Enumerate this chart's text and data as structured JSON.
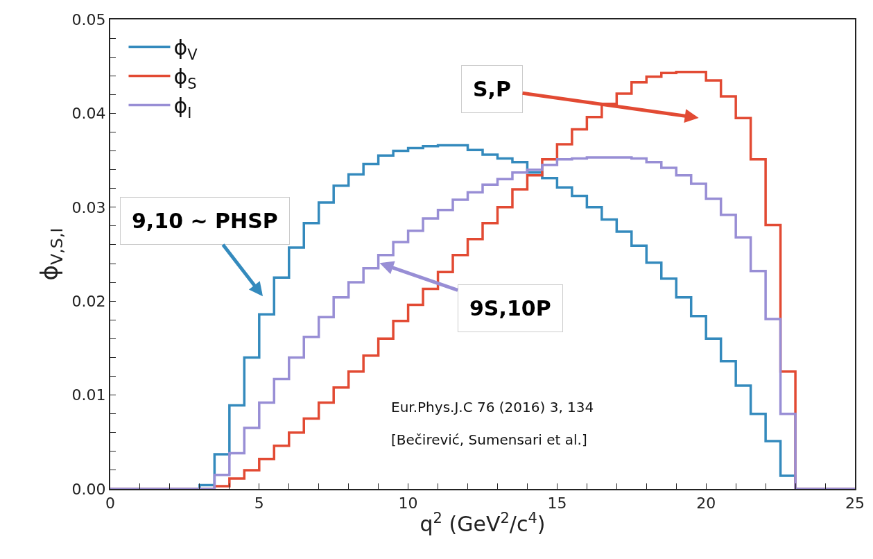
{
  "chart_data": {
    "type": "histogram",
    "xlabel": "q$^{2}$ (GeV$^{2}$/c$^{4}$)",
    "ylabel": "ϕ$_{V,S,I}$",
    "bins": [
      0,
      0.5,
      1,
      1.5,
      2,
      2.5,
      3,
      3.5,
      4,
      4.5,
      5,
      5.5,
      6,
      6.5,
      7,
      7.5,
      8,
      8.5,
      9,
      9.5,
      10,
      10.5,
      11,
      11.5,
      12,
      12.5,
      13,
      13.5,
      14,
      14.5,
      15,
      15.5,
      16,
      16.5,
      17,
      17.5,
      18,
      18.5,
      19,
      19.5,
      20,
      20.5,
      21,
      21.5,
      22,
      22.5,
      23,
      23.5,
      24,
      24.5,
      25
    ],
    "series": [
      {
        "name": "ϕ$_{V}$",
        "color": "#348abd",
        "values": [
          0,
          0,
          0,
          0,
          0,
          0,
          0.0004,
          0.0037,
          0.0089,
          0.014,
          0.0186,
          0.0225,
          0.0257,
          0.0283,
          0.0305,
          0.0323,
          0.0335,
          0.0346,
          0.0355,
          0.036,
          0.0363,
          0.0365,
          0.0366,
          0.0366,
          0.0361,
          0.0356,
          0.0352,
          0.0348,
          0.0337,
          0.0331,
          0.0321,
          0.0312,
          0.03,
          0.0287,
          0.0274,
          0.0259,
          0.0241,
          0.0224,
          0.0204,
          0.0184,
          0.016,
          0.0136,
          0.011,
          0.008,
          0.0051,
          0.0014,
          0,
          0,
          0,
          0
        ]
      },
      {
        "name": "ϕ$_{S}$",
        "color": "#e24a33",
        "values": [
          0,
          0,
          0,
          0,
          0,
          0,
          0,
          0.0003,
          0.0011,
          0.002,
          0.0032,
          0.0046,
          0.006,
          0.0075,
          0.0092,
          0.0108,
          0.0125,
          0.0142,
          0.016,
          0.0179,
          0.0196,
          0.0213,
          0.0231,
          0.0249,
          0.0266,
          0.0283,
          0.03,
          0.0319,
          0.0334,
          0.0351,
          0.0367,
          0.0383,
          0.0396,
          0.041,
          0.0421,
          0.0433,
          0.0439,
          0.0443,
          0.0444,
          0.0444,
          0.0435,
          0.0418,
          0.0395,
          0.0351,
          0.0281,
          0.0125,
          0,
          0,
          0,
          0
        ]
      },
      {
        "name": "ϕ$_{I}$",
        "color": "#988ed5",
        "values": [
          0,
          0,
          0,
          0,
          0,
          0,
          0,
          0.0015,
          0.0038,
          0.0065,
          0.0092,
          0.0117,
          0.014,
          0.0162,
          0.0183,
          0.0204,
          0.022,
          0.0235,
          0.0249,
          0.0263,
          0.0275,
          0.0288,
          0.0297,
          0.0308,
          0.0316,
          0.0324,
          0.033,
          0.0337,
          0.034,
          0.0345,
          0.0351,
          0.0352,
          0.0353,
          0.0353,
          0.0353,
          0.0352,
          0.0348,
          0.0342,
          0.0334,
          0.0325,
          0.0309,
          0.0292,
          0.0268,
          0.0232,
          0.0181,
          0.008,
          0,
          0,
          0,
          0
        ]
      }
    ],
    "xlim": [
      0,
      25
    ],
    "xticks": [
      0,
      {
        "value": 1,
        "label": null
      },
      {
        "value": 2,
        "label": null
      },
      {
        "value": 3,
        "label": null
      },
      {
        "value": 4,
        "label": null
      },
      5,
      {
        "value": 6,
        "label": null
      },
      {
        "value": 7,
        "label": null
      },
      {
        "value": 8,
        "label": null
      },
      {
        "value": 9,
        "label": null
      },
      10,
      {
        "value": 11,
        "label": null
      },
      {
        "value": 12,
        "label": null
      },
      {
        "value": 13,
        "label": null
      },
      {
        "value": 14,
        "label": null
      },
      15,
      {
        "value": 16,
        "label": null
      },
      {
        "value": 17,
        "label": null
      },
      {
        "value": 18,
        "label": null
      },
      {
        "value": 19,
        "label": null
      },
      20,
      {
        "value": 21,
        "label": null
      },
      {
        "value": 22,
        "label": null
      },
      {
        "value": 23,
        "label": null
      },
      {
        "value": 24,
        "label": null
      },
      25
    ],
    "ylim": [
      0,
      0.05
    ],
    "yticks": [
      {
        "value": 0,
        "label": "0.00"
      },
      {
        "value": 0.002,
        "label": null
      },
      {
        "value": 0.004,
        "label": null
      },
      {
        "value": 0.006,
        "label": null
      },
      {
        "value": 0.008,
        "label": null
      },
      0.01,
      {
        "value": 0.012,
        "label": null
      },
      {
        "value": 0.014,
        "label": null
      },
      {
        "value": 0.016,
        "label": null
      },
      {
        "value": 0.018,
        "label": null
      },
      {
        "value": 0.02,
        "label": "0.02"
      },
      {
        "value": 0.022,
        "label": null
      },
      {
        "value": 0.024,
        "label": null
      },
      {
        "value": 0.026,
        "label": null
      },
      {
        "value": 0.028,
        "label": null
      },
      {
        "value": 0.03,
        "label": "0.03"
      },
      {
        "value": 0.032,
        "label": null
      },
      {
        "value": 0.034,
        "label": null
      },
      {
        "value": 0.036,
        "label": null
      },
      {
        "value": 0.038,
        "label": null
      },
      {
        "value": 0.04,
        "label": "0.04"
      },
      {
        "value": 0.042,
        "label": null
      },
      {
        "value": 0.044,
        "label": null
      },
      {
        "value": 0.046,
        "label": null
      },
      {
        "value": 0.048,
        "label": null
      },
      0.05
    ],
    "annotations": [
      "9,10 ~ PHSP",
      "S,P",
      {
        "text": "9S,10P",
        "x": 9.0,
        "y": 0.0241
      },
      "Eur.Phys.J.C 76 (2016) 3, 134",
      "[Bečirević, Sumensari et al.]"
    ],
    "legend": "top left",
    "line_style": "solid"
  }
}
